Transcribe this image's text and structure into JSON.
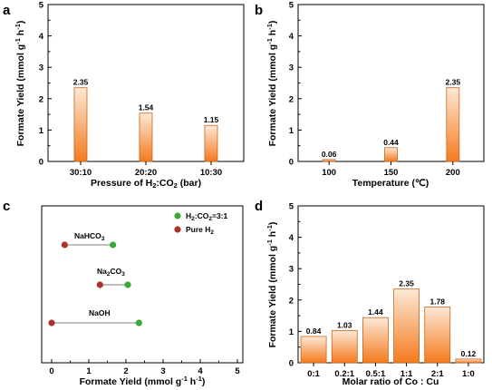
{
  "colors": {
    "bar_top": "#fde9d6",
    "bar_bottom": "#f47a1f",
    "bar_stroke": "#c8651c",
    "green": "#3aa935",
    "red": "#b0302a",
    "line": "#bfbfbf"
  },
  "chart_data": [
    {
      "panel": "a",
      "type": "bar",
      "categories": [
        "30:10",
        "20:20",
        "10:30"
      ],
      "values": [
        2.35,
        1.54,
        1.15
      ],
      "labels": [
        "2.35",
        "1.54",
        "1.15"
      ],
      "xlabel": "Pressure of H₂:CO₂ (bar)",
      "ylabel": "Formate Yield (mmol g⁻¹ h⁻¹)",
      "ylim": [
        0,
        5
      ],
      "yticks": [
        "0",
        "1",
        "2",
        "3",
        "4",
        "5"
      ]
    },
    {
      "panel": "b",
      "type": "bar",
      "categories": [
        "100",
        "150",
        "200"
      ],
      "values": [
        0.06,
        0.44,
        2.35
      ],
      "labels": [
        "0.06",
        "0.44",
        "2.35"
      ],
      "xlabel": "Temperature (℃)",
      "ylabel": "Formate Yield (mmol g⁻¹ h⁻¹)",
      "ylim": [
        0,
        5
      ],
      "yticks": [
        "0",
        "1",
        "2",
        "3",
        "4",
        "5"
      ]
    },
    {
      "panel": "c",
      "type": "scatter",
      "xlabel": "Formate Yield (mmol g⁻¹ h⁻¹)",
      "xlim": [
        0,
        5
      ],
      "xticks": [
        "0",
        "1",
        "2",
        "3",
        "4",
        "5"
      ],
      "legend": [
        {
          "name": "H₂:CO₂=3:1",
          "color": "#3aa935"
        },
        {
          "name": "Pure H₂",
          "color": "#b0302a"
        }
      ],
      "rows": [
        {
          "label": "NaHCO₃",
          "pure_h2": 0.35,
          "h2co2": 1.65
        },
        {
          "label": "Na₂CO₃",
          "pure_h2": 1.3,
          "h2co2": 2.05
        },
        {
          "label": "NaOH",
          "pure_h2": 0.0,
          "h2co2": 2.35
        }
      ]
    },
    {
      "panel": "d",
      "type": "bar",
      "categories": [
        "0:1",
        "0.2:1",
        "0.5:1",
        "1:1",
        "2:1",
        "1:0"
      ],
      "values": [
        0.84,
        1.03,
        1.44,
        2.35,
        1.78,
        0.12
      ],
      "labels": [
        "0.84",
        "1.03",
        "1.44",
        "2.35",
        "1.78",
        "0.12"
      ],
      "xlabel": "Molar ratio of Co : Cu",
      "ylabel": "Formate Yield (mmol g⁻¹ h⁻¹)",
      "ylim": [
        0,
        5
      ],
      "yticks": [
        "0",
        "1",
        "2",
        "3",
        "4",
        "5"
      ]
    }
  ],
  "panel_letters": [
    "a",
    "b",
    "c",
    "d"
  ]
}
